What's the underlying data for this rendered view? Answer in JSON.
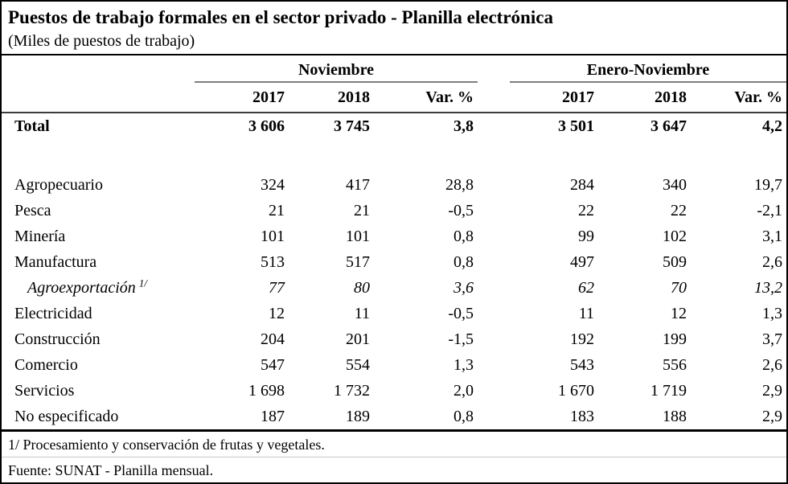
{
  "page": {
    "title": "Puestos de trabajo formales en el sector privado - Planilla electrónica",
    "subtitle": "(Miles de puestos de trabajo)"
  },
  "table": {
    "groups": [
      {
        "label": "Noviembre"
      },
      {
        "label": "Enero-Noviembre"
      }
    ],
    "columns": [
      "2017",
      "2018",
      "Var. %",
      "2017",
      "2018",
      "Var. %"
    ],
    "rows": [
      {
        "label": "Total",
        "values": [
          "3 606",
          "3 745",
          "3,8",
          "3 501",
          "3 647",
          "4,2"
        ]
      },
      {
        "label": "Agropecuario",
        "values": [
          "324",
          "417",
          "28,8",
          "284",
          "340",
          "19,7"
        ]
      },
      {
        "label": "Pesca",
        "values": [
          "21",
          "21",
          "-0,5",
          "22",
          "22",
          "-2,1"
        ]
      },
      {
        "label": "Minería",
        "values": [
          "101",
          "101",
          "0,8",
          "99",
          "102",
          "3,1"
        ]
      },
      {
        "label": "Manufactura",
        "values": [
          "513",
          "517",
          "0,8",
          "497",
          "509",
          "2,6"
        ]
      },
      {
        "label": "Agroexportación",
        "footnote_mark": "1/",
        "values": [
          "77",
          "80",
          "3,6",
          "62",
          "70",
          "13,2"
        ]
      },
      {
        "label": "Electricidad",
        "values": [
          "12",
          "11",
          "-0,5",
          "11",
          "12",
          "1,3"
        ]
      },
      {
        "label": "Construcción",
        "values": [
          "204",
          "201",
          "-1,5",
          "192",
          "199",
          "3,7"
        ]
      },
      {
        "label": "Comercio",
        "values": [
          "547",
          "554",
          "1,3",
          "543",
          "556",
          "2,6"
        ]
      },
      {
        "label": "Servicios",
        "values": [
          "1 698",
          "1 732",
          "2,0",
          "1 670",
          "1 719",
          "2,9"
        ]
      },
      {
        "label": "No especificado",
        "values": [
          "187",
          "189",
          "0,8",
          "183",
          "188",
          "2,9"
        ]
      }
    ]
  },
  "footnotes": {
    "note": "1/ Procesamiento y conservación de frutas y vegetales.",
    "source": "Fuente: SUNAT - Planilla mensual."
  },
  "colors": {
    "background": "#ffffff",
    "text": "#000000",
    "frame_border": "#000000",
    "group_underline": "#7f7f7f",
    "header_rule": "#3c3c3c",
    "section_rule": "#000000",
    "footnote_divider": "#c8c8c8"
  },
  "chart_data": {
    "type": "table",
    "title": "Puestos de trabajo formales en el sector privado - Planilla electrónica",
    "units": "Miles de puestos de trabajo",
    "column_groups": [
      {
        "name": "Noviembre",
        "columns": [
          "2017",
          "2018",
          "Var. %"
        ]
      },
      {
        "name": "Enero-Noviembre",
        "columns": [
          "2017",
          "2018",
          "Var. %"
        ]
      }
    ],
    "rows": [
      {
        "sector": "Total",
        "emphasis": "bold",
        "nov_2017": 3606,
        "nov_2018": 3745,
        "nov_var_pct": 3.8,
        "ene_nov_2017": 3501,
        "ene_nov_2018": 3647,
        "ene_nov_var_pct": 4.2
      },
      {
        "sector": "Agropecuario",
        "emphasis": "none",
        "nov_2017": 324,
        "nov_2018": 417,
        "nov_var_pct": 28.8,
        "ene_nov_2017": 284,
        "ene_nov_2018": 340,
        "ene_nov_var_pct": 19.7
      },
      {
        "sector": "Pesca",
        "emphasis": "none",
        "nov_2017": 21,
        "nov_2018": 21,
        "nov_var_pct": -0.5,
        "ene_nov_2017": 22,
        "ene_nov_2018": 22,
        "ene_nov_var_pct": -2.1
      },
      {
        "sector": "Minería",
        "emphasis": "none",
        "nov_2017": 101,
        "nov_2018": 101,
        "nov_var_pct": 0.8,
        "ene_nov_2017": 99,
        "ene_nov_2018": 102,
        "ene_nov_var_pct": 3.1
      },
      {
        "sector": "Manufactura",
        "emphasis": "none",
        "nov_2017": 513,
        "nov_2018": 517,
        "nov_var_pct": 0.8,
        "ene_nov_2017": 497,
        "ene_nov_2018": 509,
        "ene_nov_var_pct": 2.6
      },
      {
        "sector": "Agroexportación 1/",
        "emphasis": "italic-indented",
        "nov_2017": 77,
        "nov_2018": 80,
        "nov_var_pct": 3.6,
        "ene_nov_2017": 62,
        "ene_nov_2018": 70,
        "ene_nov_var_pct": 13.2
      },
      {
        "sector": "Electricidad",
        "emphasis": "none",
        "nov_2017": 12,
        "nov_2018": 11,
        "nov_var_pct": -0.5,
        "ene_nov_2017": 11,
        "ene_nov_2018": 12,
        "ene_nov_var_pct": 1.3
      },
      {
        "sector": "Construcción",
        "emphasis": "none",
        "nov_2017": 204,
        "nov_2018": 201,
        "nov_var_pct": -1.5,
        "ene_nov_2017": 192,
        "ene_nov_2018": 199,
        "ene_nov_var_pct": 3.7
      },
      {
        "sector": "Comercio",
        "emphasis": "none",
        "nov_2017": 547,
        "nov_2018": 554,
        "nov_var_pct": 1.3,
        "ene_nov_2017": 543,
        "ene_nov_2018": 556,
        "ene_nov_var_pct": 2.6
      },
      {
        "sector": "Servicios",
        "emphasis": "none",
        "nov_2017": 1698,
        "nov_2018": 1732,
        "nov_var_pct": 2.0,
        "ene_nov_2017": 1670,
        "ene_nov_2018": 1719,
        "ene_nov_var_pct": 2.9
      },
      {
        "sector": "No especificado",
        "emphasis": "none",
        "nov_2017": 187,
        "nov_2018": 189,
        "nov_var_pct": 0.8,
        "ene_nov_2017": 183,
        "ene_nov_2018": 188,
        "ene_nov_var_pct": 2.9
      }
    ],
    "footnote": "1/ Procesamiento y conservación de frutas y vegetales.",
    "source": "Fuente: SUNAT - Planilla mensual.",
    "number_format": "es-PE (espacio como separador de miles, coma decimal)"
  }
}
